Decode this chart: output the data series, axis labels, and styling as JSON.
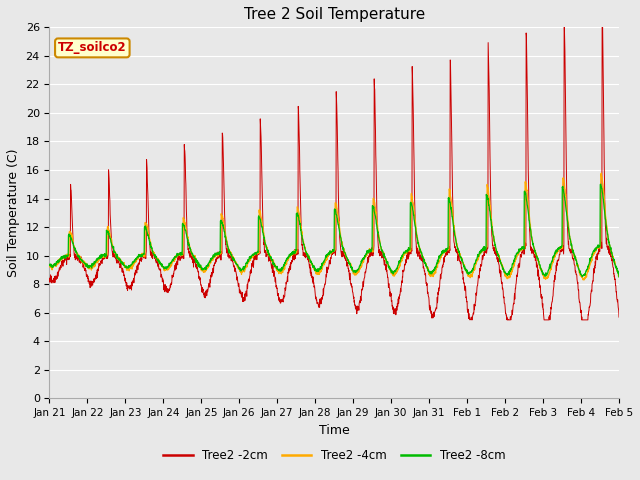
{
  "title": "Tree 2 Soil Temperature",
  "xlabel": "Time",
  "ylabel": "Soil Temperature (C)",
  "annotation": "TZ_soilco2",
  "ylim": [
    0,
    26
  ],
  "xlim": [
    0,
    15
  ],
  "yticks": [
    0,
    2,
    4,
    6,
    8,
    10,
    12,
    14,
    16,
    18,
    20,
    22,
    24,
    26
  ],
  "xtick_labels": [
    "Jan 21",
    "Jan 22",
    "Jan 23",
    "Jan 24",
    "Jan 25",
    "Jan 26",
    "Jan 27",
    "Jan 28",
    "Jan 29",
    "Jan 30",
    "Jan 31",
    "Feb 1",
    "Feb 2",
    "Feb 3",
    "Feb 4",
    "Feb 5"
  ],
  "legend_labels": [
    "Tree2 -2cm",
    "Tree2 -4cm",
    "Tree2 -8cm"
  ],
  "line_colors": [
    "#cc0000",
    "#ffaa00",
    "#00bb00"
  ],
  "bg_color": "#e8e8e8",
  "grid_color": "#ffffff",
  "title_fontsize": 11,
  "axis_fontsize": 9,
  "tick_fontsize": 8,
  "figwidth": 6.4,
  "figheight": 4.8,
  "dpi": 100
}
